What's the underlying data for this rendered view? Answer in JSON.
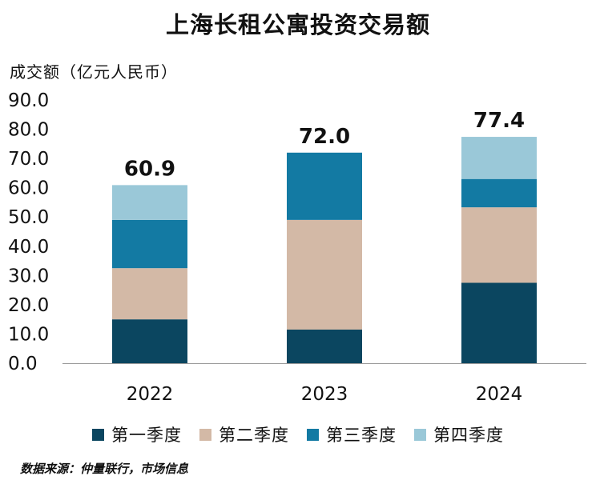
{
  "chart_data": {
    "type": "bar",
    "stacked": true,
    "title": "上海长租公寓投资交易额",
    "ylabel": "成交额（亿元人民币）",
    "xlabel": "",
    "categories": [
      "2022",
      "2023",
      "2024"
    ],
    "ylim": [
      0,
      90
    ],
    "yticks": [
      "0.0",
      "10.0",
      "20.0",
      "30.0",
      "40.0",
      "50.0",
      "60.0",
      "70.0",
      "80.0",
      "90.0"
    ],
    "series": [
      {
        "name": "第一季度",
        "color": "#0b4660",
        "values": [
          15.0,
          11.5,
          27.5
        ]
      },
      {
        "name": "第二季度",
        "color": "#d3b9a6",
        "values": [
          17.5,
          37.5,
          25.8
        ]
      },
      {
        "name": "第三季度",
        "color": "#137aa3",
        "values": [
          16.5,
          23.0,
          9.7
        ]
      },
      {
        "name": "第四季度",
        "color": "#9ac8d8",
        "values": [
          11.9,
          0.0,
          14.4
        ]
      }
    ],
    "totals": [
      "60.9",
      "72.0",
      "77.4"
    ],
    "legend": "bottom"
  },
  "source": "数据来源：仲量联行，市场信息"
}
